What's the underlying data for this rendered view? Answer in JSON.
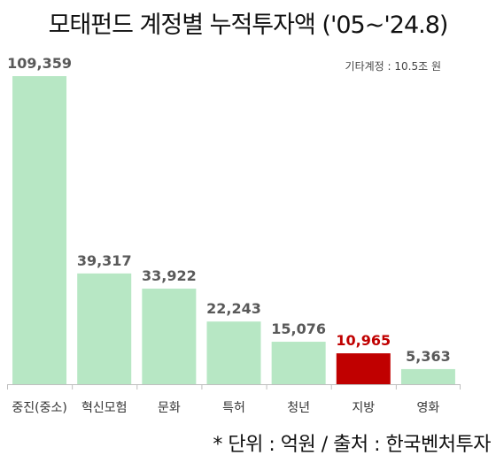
{
  "title": "모태펀드 계정별 누적투자액 ('05~'24.8)",
  "note": "기타계정 : 10.5조 원",
  "footer": "* 단위 : 억원 / 출처 : 한국벤처투자",
  "colors": {
    "bar": "#b7e7c4",
    "highlight": "#c00000",
    "value_label": "#595959",
    "highlight_label": "#c00000",
    "axis": "#bfbfbf"
  },
  "chart_data": {
    "type": "bar",
    "categories": [
      "중진(중소)",
      "혁신모험",
      "문화",
      "특허",
      "청년",
      "지방",
      "영화"
    ],
    "values": [
      109359,
      39317,
      33922,
      22243,
      15076,
      10965,
      5363
    ],
    "value_labels": [
      "109,359",
      "39,317",
      "33,922",
      "22,243",
      "15,076",
      "10,965",
      "5,363"
    ],
    "highlight_index": 5,
    "title": "모태펀드 계정별 누적투자액 ('05~'24.8)",
    "xlabel": "",
    "ylabel": "",
    "grid": false,
    "legend": "none"
  }
}
